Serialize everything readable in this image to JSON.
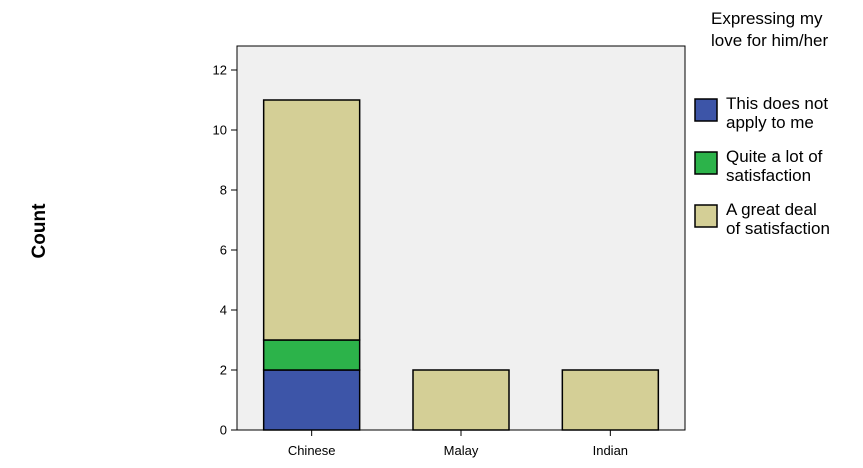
{
  "chart_data": {
    "type": "bar",
    "stacked": true,
    "categories": [
      "Chinese",
      "Malay",
      "Indian"
    ],
    "series": [
      {
        "name": "This does not apply to me",
        "color": "#3d55a8",
        "values": [
          2,
          0,
          0
        ]
      },
      {
        "name": "Quite a lot of satisfaction",
        "color": "#2cb34a",
        "values": [
          1,
          0,
          0
        ]
      },
      {
        "name": "A great deal of satisfaction",
        "color": "#d4cf96",
        "values": [
          8,
          2,
          2
        ]
      }
    ],
    "legend_title": "Expressing my love for him/her",
    "legend_placement": "right",
    "ylabel": "Count",
    "xlabel": "",
    "ylim": [
      0,
      12.8
    ],
    "yticks": [
      0,
      2,
      4,
      6,
      8,
      10,
      12
    ],
    "plot_background": "#f0f0f0",
    "grid": false
  }
}
